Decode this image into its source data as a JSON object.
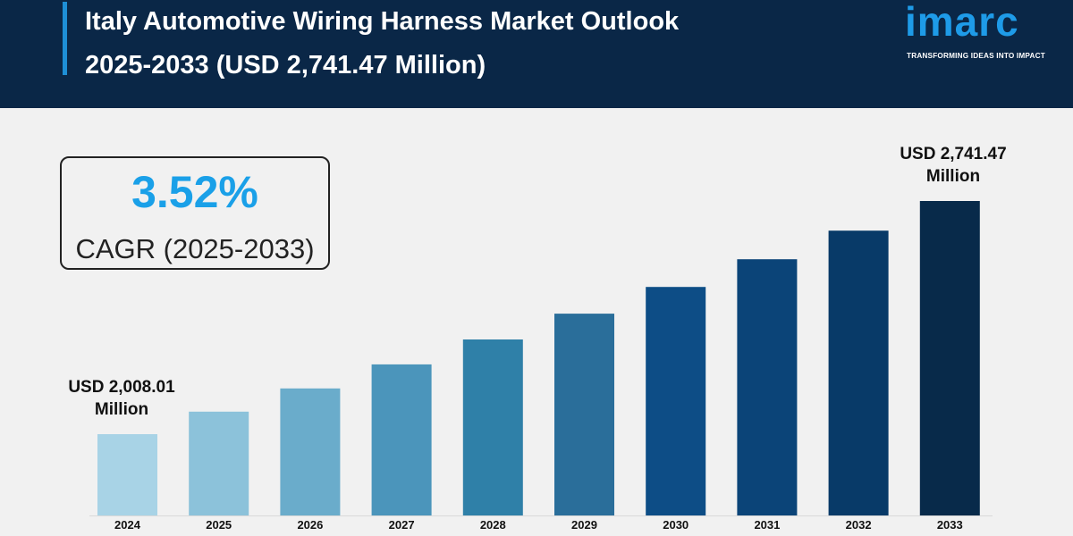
{
  "header": {
    "title_line1": "Italy Automotive Wiring Harness Market Outlook",
    "title_line2": "2025-2033 (USD 2,741.47 Million)"
  },
  "logo": {
    "word": "imarc",
    "tagline": "TRANSFORMING IDEAS INTO IMPACT"
  },
  "cagr": {
    "value": "3.52%",
    "label": "CAGR (2025-2033)"
  },
  "annotations": {
    "start_line1": "USD 2,008.01",
    "start_line2": "Million",
    "end_line1": "USD 2,741.47",
    "end_line2": "Million"
  },
  "chart_data": {
    "type": "bar",
    "title": "Italy Automotive Wiring Harness Market Outlook 2025-2033 (USD 2,741.47 Million)",
    "xlabel": "",
    "ylabel": "",
    "categories": [
      "2024",
      "2025",
      "2026",
      "2027",
      "2028",
      "2029",
      "2030",
      "2031",
      "2032",
      "2033"
    ],
    "values": [
      2008.01,
      2078.7,
      2151.87,
      2227.61,
      2306.03,
      2387.2,
      2471.23,
      2558.22,
      2648.27,
      2741.47
    ],
    "colors": [
      "#a8d3e6",
      "#8cc2da",
      "#6aaccb",
      "#4b95bb",
      "#2f80a8",
      "#2a6e9a",
      "#0d4d86",
      "#0b4478",
      "#083a68",
      "#082a4a"
    ],
    "grid": false,
    "legend": "none"
  }
}
